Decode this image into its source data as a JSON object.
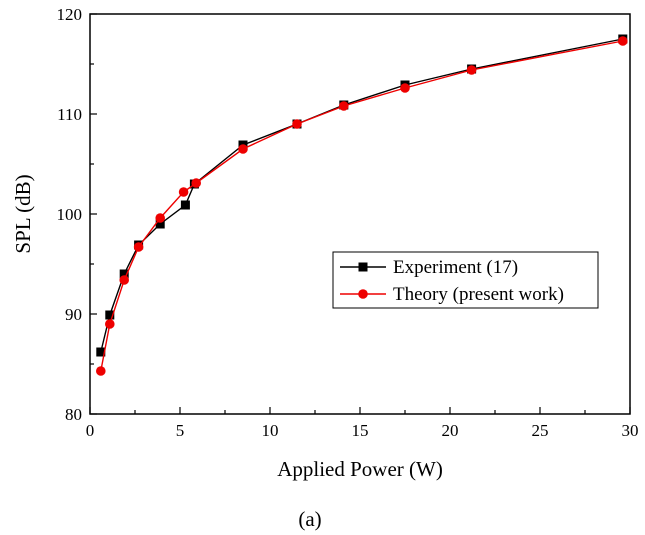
{
  "chart_data": {
    "type": "line",
    "xlabel": "Applied Power (W)",
    "ylabel": "SPL (dB)",
    "xlim": [
      0,
      30
    ],
    "ylim": [
      80,
      120
    ],
    "xticks": [
      0,
      5,
      10,
      15,
      20,
      25,
      30
    ],
    "yticks": [
      80,
      90,
      100,
      110,
      120
    ],
    "grid": false,
    "legend_position": "center-right",
    "caption": "(a)",
    "series": [
      {
        "name": "Experiment (17)",
        "color": "#000000",
        "marker": "square",
        "x": [
          0.6,
          1.1,
          1.9,
          2.7,
          3.9,
          5.3,
          5.8,
          8.5,
          11.5,
          14.1,
          17.5,
          21.2,
          29.6
        ],
        "y": [
          86.2,
          89.9,
          94.0,
          96.9,
          99.0,
          100.9,
          103.0,
          106.9,
          109.0,
          110.9,
          112.9,
          114.5,
          117.5
        ]
      },
      {
        "name": "Theory (present work)",
        "color": "#ee0000",
        "marker": "circle",
        "x": [
          0.6,
          1.1,
          1.9,
          2.7,
          3.9,
          5.2,
          5.9,
          8.5,
          11.5,
          14.1,
          17.5,
          21.2,
          29.6
        ],
        "y": [
          84.3,
          89.0,
          93.4,
          96.7,
          99.6,
          102.2,
          103.1,
          106.5,
          109.0,
          110.8,
          112.6,
          114.4,
          117.3
        ]
      }
    ]
  }
}
